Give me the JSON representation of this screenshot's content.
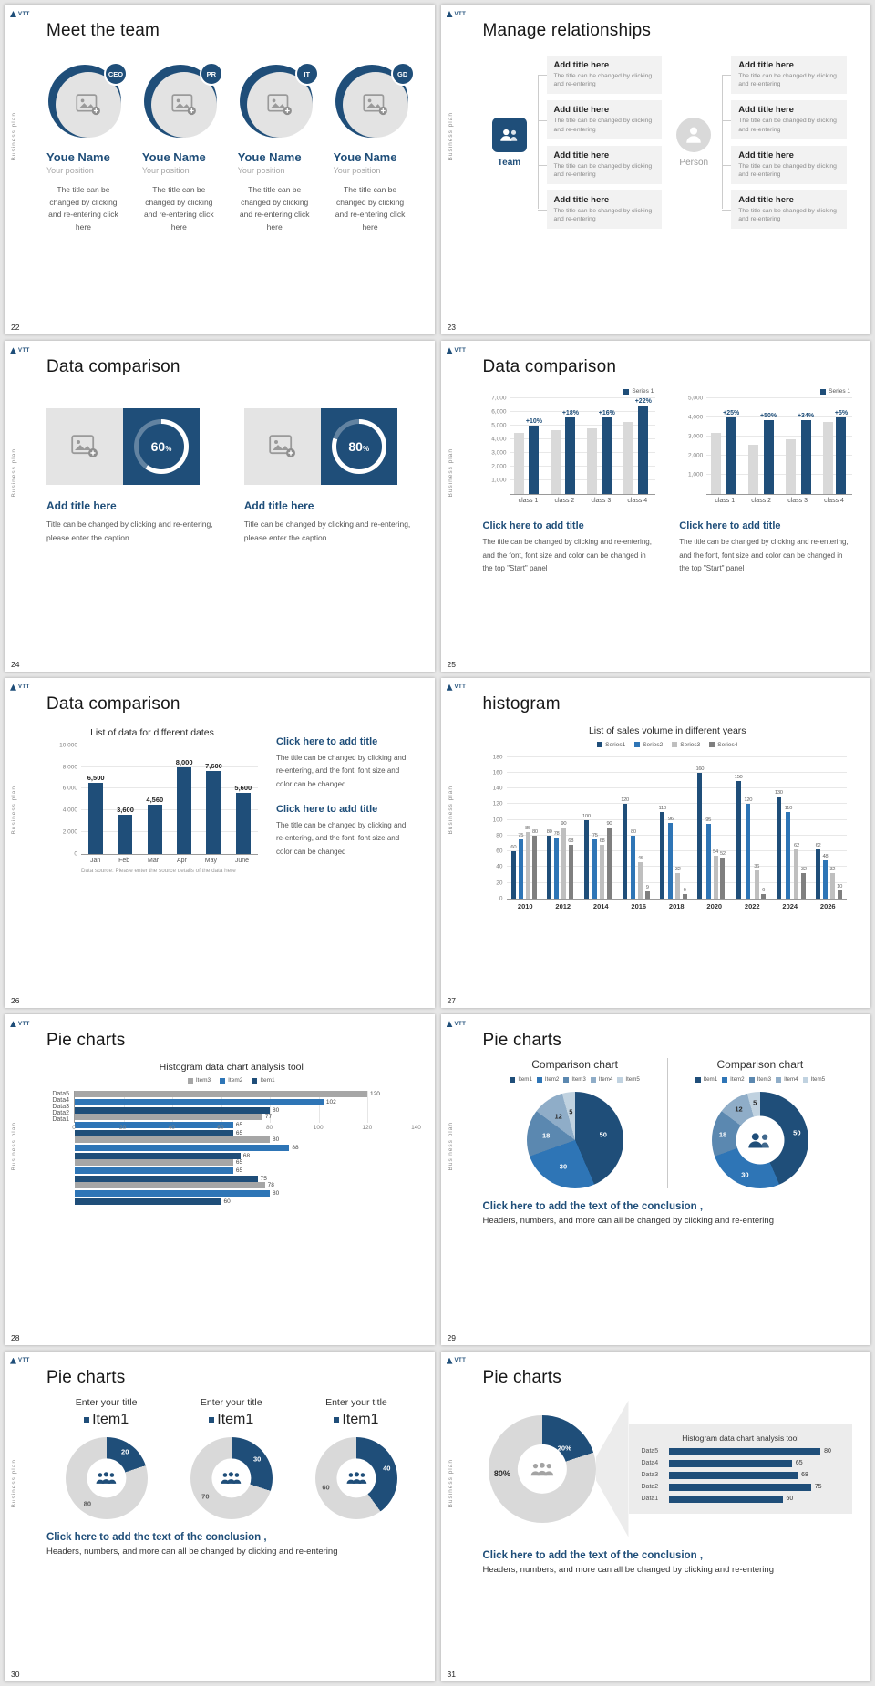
{
  "meta": {
    "logo_text": "VTT",
    "sidebar_text": "Business plan"
  },
  "colors": {
    "navy": "#1f4e79",
    "blue": "#2e75b6",
    "gray_light": "#d9d9d9",
    "gray_mid": "#a6a6a6",
    "gray_dark": "#7f7f7f"
  },
  "icons": {
    "logo-mark-icon": "triangle",
    "image-placeholder-icon": "picture-frame-with-plus",
    "team-icon": "two-people",
    "person-icon": "single-person",
    "people-icon": "three-people"
  },
  "slides": {
    "s22": {
      "page": "22",
      "title": "Meet the team",
      "members": [
        {
          "badge": "CEO",
          "name": "Youe Name",
          "position": "Your position",
          "desc": "The title can be changed by clicking and re-entering click here"
        },
        {
          "badge": "PR",
          "name": "Youe Name",
          "position": "Your position",
          "desc": "The title can be changed by clicking and re-entering click here"
        },
        {
          "badge": "IT",
          "name": "Youe Name",
          "position": "Your position",
          "desc": "The title can be changed by clicking and re-entering click here"
        },
        {
          "badge": "GD",
          "name": "Youe Name",
          "position": "Your position",
          "desc": "The title can be changed by clicking and re-entering click here"
        }
      ]
    },
    "s23": {
      "page": "23",
      "title": "Manage relationships",
      "team_label": "Team",
      "person_label": "Person",
      "item_title": "Add title here",
      "item_desc": "The title can be changed by clicking and re-entering",
      "left_count": 4,
      "right_count": 4
    },
    "s24": {
      "page": "24",
      "title": "Data comparison",
      "blocks": [
        {
          "percent": 60,
          "title": "Add title here",
          "desc": "Title can be changed by clicking and re-entering, please enter the caption"
        },
        {
          "percent": 80,
          "title": "Add title here",
          "desc": "Title can be changed by clicking and re-entering, please enter the caption"
        }
      ]
    },
    "s25": {
      "page": "25",
      "title": "Data comparison",
      "block_title": "Click here to add title",
      "block_desc": "The title can be changed by clicking and re-entering, and the font, font size and color can be changed in the top \"Start\" panel",
      "charts": [
        {
          "type": "bar",
          "legend": "Series 1",
          "ymax": 7000,
          "ytick_step": 1000,
          "categories": [
            "class 1",
            "class 2",
            "class 3",
            "class 4"
          ],
          "series": [
            {
              "name": "base",
              "color": "#d9d9d9",
              "values": [
                4500,
                4700,
                4800,
                5300
              ]
            },
            {
              "name": "Series 1",
              "color": "#1f4e79",
              "values": [
                5000,
                5600,
                5600,
                6500
              ],
              "labels": [
                "+10%",
                "+18%",
                "+16%",
                "+22%"
              ]
            }
          ]
        },
        {
          "type": "bar",
          "legend": "Series 1",
          "ymax": 5000,
          "ytick_step": 1000,
          "categories": [
            "class 1",
            "class 2",
            "class 3",
            "class 4"
          ],
          "series": [
            {
              "name": "base",
              "color": "#d9d9d9",
              "values": [
                3200,
                2600,
                2900,
                3800
              ]
            },
            {
              "name": "Series 1",
              "color": "#1f4e79",
              "values": [
                4000,
                3900,
                3900,
                4000
              ],
              "labels": [
                "+25%",
                "+50%",
                "+34%",
                "+5%"
              ]
            }
          ]
        }
      ]
    },
    "s26": {
      "page": "26",
      "title": "Data comparison",
      "chart": {
        "type": "bar",
        "title": "List of data for different dates",
        "ymax": 10000,
        "ytick_step": 2000,
        "categories": [
          "Jan",
          "Feb",
          "Mar",
          "Apr",
          "May",
          "June"
        ],
        "series": [
          {
            "name": "data",
            "color": "#1f4e79",
            "values": [
              6500,
              3600,
              4560,
              8000,
              7600,
              5600
            ],
            "labels": [
              "6,500",
              "3,600",
              "4,560",
              "8,000",
              "7,600",
              "5,600"
            ]
          }
        ],
        "source": "Data source: Please enter the source details of the data here"
      },
      "blocks": [
        {
          "title": "Click here to add title",
          "desc": "The title can be changed by clicking and re-entering, and the font, font size and color can be changed"
        },
        {
          "title": "Click here to add title",
          "desc": "The title can be changed by clicking and re-entering, and the font, font size and color can be changed"
        }
      ]
    },
    "s27": {
      "page": "27",
      "title": "histogram",
      "chart": {
        "type": "bar",
        "title": "List of sales volume in different years",
        "ymax": 180,
        "ytick_step": 20,
        "categories": [
          "2010",
          "2012",
          "2014",
          "2016",
          "2018",
          "2020",
          "2022",
          "2024",
          "2026"
        ],
        "series": [
          {
            "name": "Series1",
            "color": "#1f4e79",
            "values": [
              60,
              80,
              100,
              120,
              110,
              160,
              150,
              130,
              62
            ]
          },
          {
            "name": "Series2",
            "color": "#2e75b6",
            "values": [
              75,
              78,
              75,
              80,
              96,
              95,
              120,
              110,
              48
            ]
          },
          {
            "name": "Series3",
            "color": "#bfbfbf",
            "values": [
              85,
              90,
              68,
              46,
              32,
              54,
              36,
              62,
              32
            ]
          },
          {
            "name": "Series4",
            "color": "#7f7f7f",
            "values": [
              80,
              68,
              90,
              9,
              6,
              52,
              6,
              32,
              10
            ]
          }
        ]
      }
    },
    "s28": {
      "page": "28",
      "title": "Pie charts",
      "chart": {
        "type": "bar-horizontal",
        "title": "Histogram data chart analysis tool",
        "xmax": 140,
        "xtick_step": 20,
        "categories": [
          "Data5",
          "Data4",
          "Data3",
          "Data2",
          "Data1"
        ],
        "series": [
          {
            "name": "Item3",
            "color": "#a6a6a6",
            "values": [
              120,
              77,
              80,
              65,
              78
            ]
          },
          {
            "name": "Item2",
            "color": "#2e75b6",
            "values": [
              102,
              65,
              88,
              65,
              80
            ]
          },
          {
            "name": "Item1",
            "color": "#1f4e79",
            "values": [
              80,
              65,
              68,
              75,
              60
            ]
          }
        ]
      }
    },
    "s29": {
      "page": "29",
      "title": "Pie charts",
      "panels": [
        {
          "title": "Comparison chart",
          "type": "pie"
        },
        {
          "title": "Comparison chart",
          "type": "donut"
        }
      ],
      "legend": [
        "Item1",
        "Item2",
        "Item3",
        "Item4",
        "Item5"
      ],
      "values": [
        50,
        30,
        18,
        12,
        5
      ],
      "slice_colors": [
        "#1f4e79",
        "#2e75b6",
        "#5b88b0",
        "#8fadc8",
        "#c0d2e0"
      ],
      "conclusion_bold": "Click here to add the text of the conclusion ,",
      "conclusion_text": "Headers, numbers, and more can all be changed by clicking and re-entering"
    },
    "s30": {
      "page": "30",
      "title": "Pie charts",
      "panel_title": "Enter your title",
      "legend_label": "Item1",
      "donuts": [
        {
          "value": 20,
          "rest": 80
        },
        {
          "value": 30,
          "rest": 70
        },
        {
          "value": 40,
          "rest": 60
        }
      ],
      "conclusion_bold": "Click here to add the text of the conclusion ,",
      "conclusion_text": "Headers, numbers, and more can all be changed by clicking and re-entering"
    },
    "s31": {
      "page": "31",
      "title": "Pie charts",
      "donut": {
        "value": 20,
        "value_label": "20%",
        "main_label": "80%"
      },
      "panel": {
        "title": "Histogram data chart analysis tool",
        "categories": [
          "Data5",
          "Data4",
          "Data3",
          "Data2",
          "Data1"
        ],
        "values": [
          80,
          65,
          68,
          75,
          60
        ]
      },
      "conclusion_bold": "Click here to add the text of the conclusion ,",
      "conclusion_text": "Headers, numbers, and more can all be changed by clicking and re-entering"
    }
  }
}
